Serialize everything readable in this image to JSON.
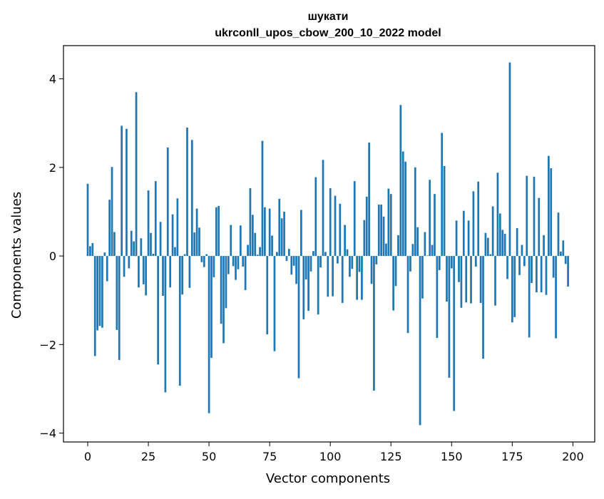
{
  "chart_data": {
    "type": "bar",
    "title_line1": "шукати",
    "title_line2": "ukrconll_upos_cbow_200_10_2022 model",
    "xlabel": "Vector components",
    "ylabel": "Components values",
    "xlim": [
      -10,
      209
    ],
    "ylim": [
      -4.2,
      4.75
    ],
    "xticks": [
      0,
      25,
      50,
      75,
      100,
      125,
      150,
      175,
      200
    ],
    "yticks": [
      -4,
      -2,
      0,
      2,
      4
    ],
    "xtick_labels": [
      "0",
      "25",
      "50",
      "75",
      "100",
      "125",
      "150",
      "175",
      "200"
    ],
    "ytick_labels": [
      "−4",
      "−2",
      "0",
      "2",
      "4"
    ],
    "bar_color": "#1f77b4",
    "values": [
      1.63,
      0.22,
      0.29,
      -2.26,
      -1.68,
      -1.58,
      -1.62,
      0.08,
      -0.57,
      1.27,
      2.01,
      0.54,
      -1.67,
      -2.35,
      2.94,
      -0.47,
      2.87,
      -0.28,
      0.57,
      0.33,
      3.7,
      -0.71,
      0.4,
      -0.64,
      -0.89,
      1.48,
      0.52,
      0.05,
      1.69,
      -2.45,
      0.77,
      -0.9,
      -3.08,
      2.45,
      -0.71,
      0.94,
      0.2,
      1.3,
      -2.93,
      -0.87,
      0.04,
      2.9,
      -0.72,
      2.62,
      0.53,
      1.07,
      0.64,
      -0.14,
      -0.25,
      0.04,
      -3.55,
      -2.3,
      -0.48,
      1.1,
      1.13,
      -1.53,
      -1.97,
      -1.18,
      -0.41,
      0.7,
      -0.23,
      -0.54,
      -0.3,
      0.69,
      -0.24,
      -0.77,
      0.25,
      1.53,
      0.93,
      0.52,
      0.03,
      0.2,
      2.6,
      1.1,
      -1.77,
      1.07,
      0.46,
      -2.15,
      0.09,
      1.29,
      0.85,
      1.0,
      -0.11,
      0.16,
      -0.42,
      -0.22,
      -0.63,
      -2.76,
      1.04,
      -1.43,
      -0.53,
      -1.24,
      -0.35,
      0.11,
      1.78,
      -1.32,
      -0.26,
      2.17,
      0.09,
      -0.92,
      1.53,
      -0.91,
      1.36,
      -0.17,
      1.18,
      -1.06,
      0.7,
      0.15,
      -0.47,
      -0.29,
      1.69,
      -0.99,
      -0.36,
      -0.99,
      0.81,
      1.34,
      2.56,
      -0.63,
      -3.04,
      -0.19,
      1.16,
      1.16,
      0.89,
      0.28,
      1.52,
      1.4,
      -1.23,
      -0.68,
      0.47,
      3.41,
      2.36,
      2.13,
      -1.74,
      -0.35,
      0.27,
      2.0,
      0.65,
      -3.82,
      -0.96,
      0.54,
      0.01,
      1.72,
      0.25,
      1.4,
      -1.85,
      -0.32,
      2.78,
      2.03,
      -1.03,
      -2.75,
      -0.28,
      -3.5,
      0.8,
      -0.59,
      -1.17,
      1.02,
      -1.05,
      0.8,
      -1.07,
      1.46,
      -0.24,
      1.68,
      -1.06,
      -2.32,
      0.52,
      0.41,
      0.04,
      1.12,
      -1.12,
      1.88,
      0.96,
      0.59,
      0.5,
      -0.52,
      4.37,
      -1.5,
      -1.38,
      0.63,
      -0.43,
      0.25,
      -0.23,
      1.81,
      -1.84,
      -0.61,
      1.79,
      -0.82,
      1.31,
      -0.82,
      0.47,
      -0.88,
      2.26,
      1.98,
      -0.49,
      -1.86,
      0.98,
      0.1,
      0.35,
      -0.18,
      -0.69
    ]
  }
}
